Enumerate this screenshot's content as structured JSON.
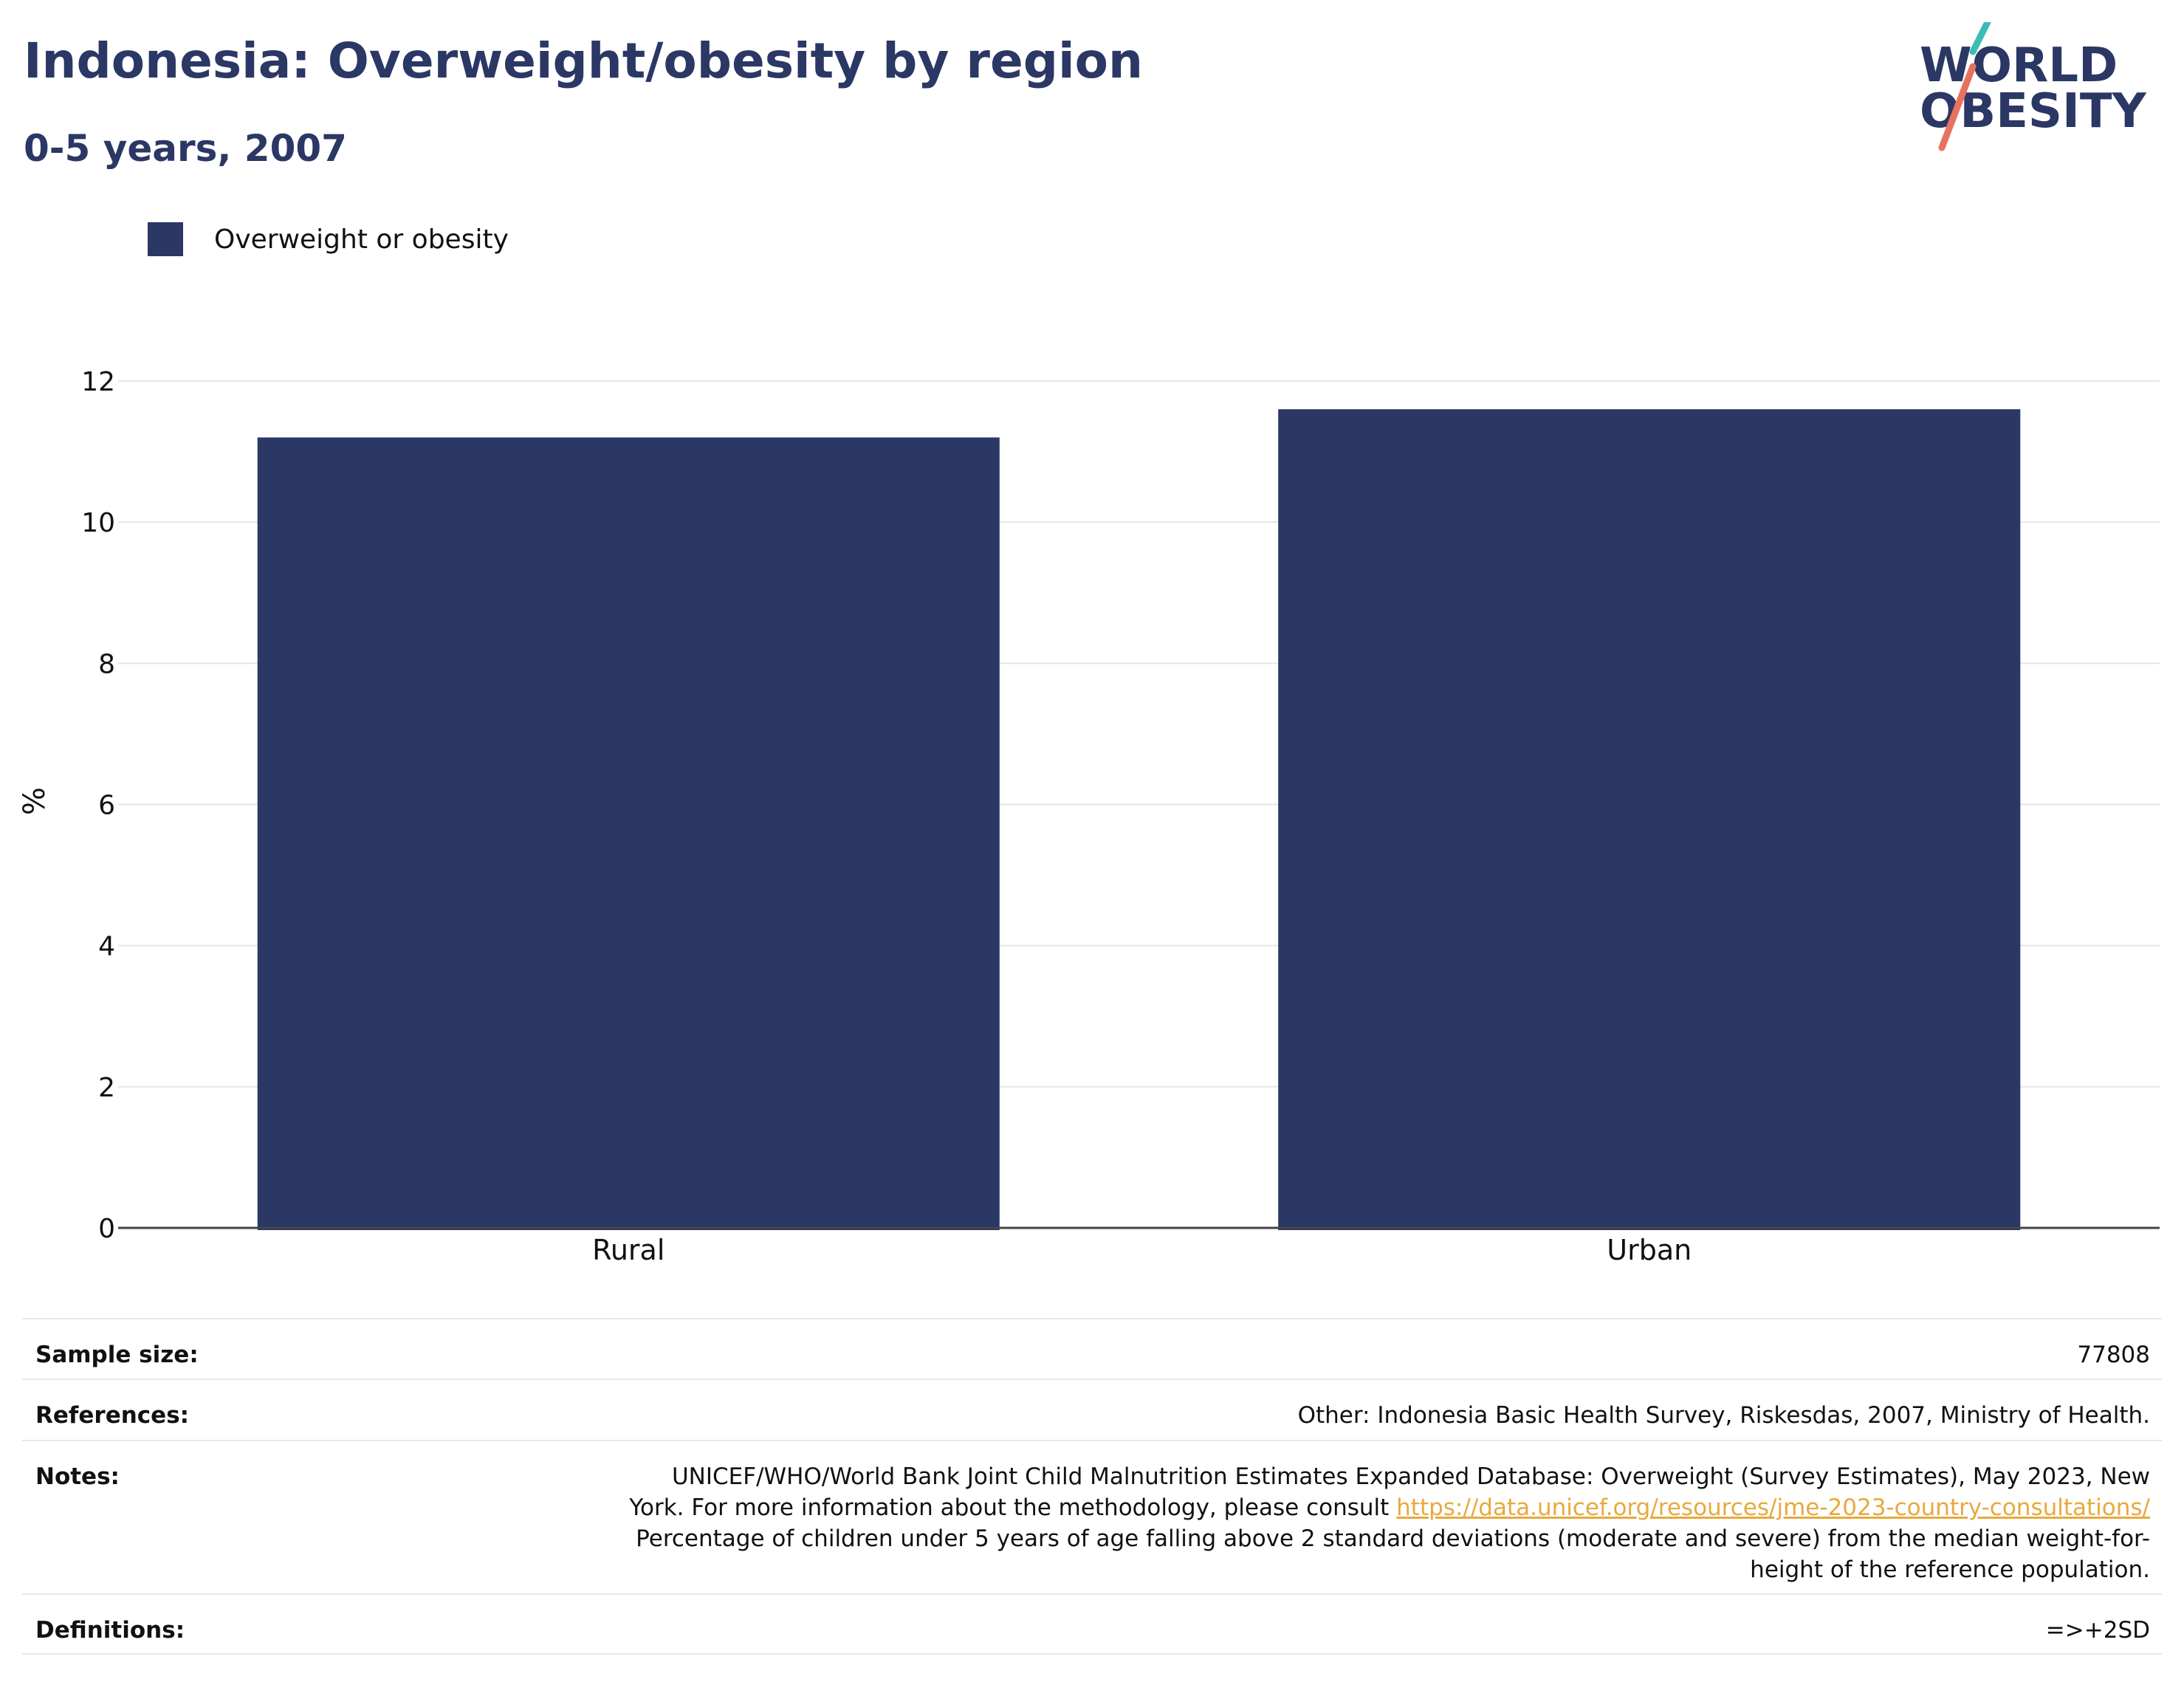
{
  "header": {
    "title": "Indonesia: Overweight/obesity by region",
    "subtitle": "0-5 years, 2007"
  },
  "logo": {
    "line1": "WORLD",
    "line2": "OBESITY",
    "colors": {
      "text": "#2b3764",
      "slash_top": "#3bbcb5",
      "slash_bottom": "#e8725f"
    }
  },
  "legend": {
    "items": [
      {
        "label": "Overweight or obesity",
        "color": "#2b3764"
      }
    ]
  },
  "chart_data": {
    "type": "bar",
    "categories": [
      "Rural",
      "Urban"
    ],
    "series": [
      {
        "name": "Overweight or obesity",
        "values": [
          11.2,
          11.6
        ],
        "color": "#2b3764"
      }
    ],
    "ylabel": "%",
    "xlabel": "",
    "ylim": [
      0,
      12
    ],
    "yticks": [
      0,
      2,
      4,
      6,
      8,
      10,
      12
    ],
    "grid": true,
    "legend_position": "top-left"
  },
  "meta": {
    "sample_size": {
      "label": "Sample size:",
      "value": "77808"
    },
    "references": {
      "label": "References:",
      "value": "Other: Indonesia Basic Health Survey, Riskesdas, 2007, Ministry of Health."
    },
    "notes": {
      "label": "Notes:",
      "line1": "UNICEF/WHO/World Bank Joint Child Malnutrition Estimates Expanded Database: Overweight (Survey Estimates), May 2023, New",
      "line2_prefix": "York. For more information about the methodology, please consult ",
      "link": "https://data.unicef.org/resources/jme-2023-country-consultations/",
      "line3": "Percentage of children under 5 years of age falling above 2 standard deviations (moderate and severe) from the median weight-for-",
      "line4": "height of the reference population."
    },
    "definitions": {
      "label": "Definitions:",
      "value": "=>+2SD"
    }
  }
}
